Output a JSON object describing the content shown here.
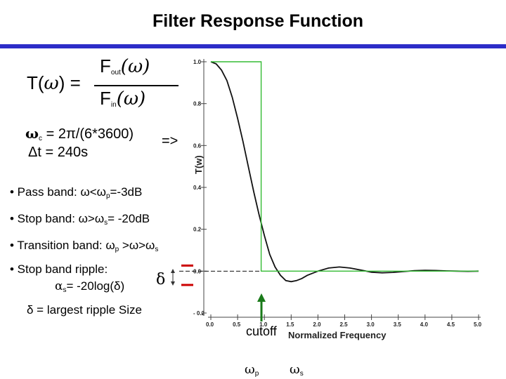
{
  "slide": {
    "title": "Filter Response Function"
  },
  "formula": {
    "lhs": "T(",
    "omega": "ω",
    "rhs": ") =",
    "numerator": "F",
    "numerator_sub": "out",
    "denominator": "F",
    "denominator_sub": "in",
    "arg": "(ω)"
  },
  "cutoff_eq": {
    "line1_symbol": "ω",
    "line1_sub": "c",
    "line1_text": " = 2π/(6*3600)",
    "arrow": "=>",
    "line2": "Δt = 240s"
  },
  "bullets": [
    {
      "pre": "• Pass band: ω<ω",
      "sub": "p",
      "post": "=-3dB"
    },
    {
      "pre": "• Stop band: ω>ω",
      "sub": "s",
      "post": "= -20dB"
    },
    {
      "pre": "• Transition band: ω",
      "sub": "p",
      "post": " >ω>ω",
      "sub2": "s"
    },
    {
      "pre": "• Stop band ripple:",
      "sub": "",
      "post": ""
    }
  ],
  "ripple": {
    "alpha": "α",
    "alpha_sub": "s",
    "text": "= -20log(δ)",
    "delta_symbol": "δ",
    "definition": "δ = largest ripple Size"
  },
  "markers": {
    "cutoff": "cutoff",
    "omega_p": "ω",
    "omega_p_sub": "p",
    "omega_s": "ω",
    "omega_s_sub": "s"
  },
  "chart_data": {
    "type": "line",
    "xlabel": "Normalized Frequency",
    "ylabel": "T(w)",
    "xlim": [
      0.0,
      5.0
    ],
    "ylim": [
      -0.2,
      1.0
    ],
    "xticks": [
      "0.0",
      "0.5",
      "1.0",
      "1.5",
      "2.0",
      "2.5",
      "3.0",
      "3.5",
      "4.0",
      "4.5",
      "5.0"
    ],
    "yticks": [
      "1.0",
      "0.8",
      "0.6",
      "0.4",
      "0.2",
      "0.0",
      "- 0.2"
    ],
    "series": [
      {
        "color": "#111111",
        "x": [
          0.0,
          0.1,
          0.2,
          0.3,
          0.4,
          0.5,
          0.6,
          0.7,
          0.8,
          0.9,
          1.0,
          1.1,
          1.2,
          1.3,
          1.4,
          1.5,
          1.6,
          1.7,
          1.8,
          1.9,
          2.0,
          2.2,
          2.4,
          2.6,
          2.8,
          3.0,
          3.2,
          3.4,
          3.6,
          3.8,
          4.0,
          4.2,
          4.4,
          4.6,
          4.8,
          5.0
        ],
        "y": [
          1.0,
          0.99,
          0.96,
          0.91,
          0.83,
          0.73,
          0.62,
          0.5,
          0.38,
          0.27,
          0.17,
          0.08,
          0.02,
          -0.02,
          -0.045,
          -0.05,
          -0.045,
          -0.035,
          -0.02,
          -0.01,
          0.0,
          0.015,
          0.02,
          0.015,
          0.005,
          -0.005,
          -0.008,
          -0.006,
          -0.002,
          0.002,
          0.004,
          0.003,
          0.001,
          0.0,
          -0.001,
          0.0
        ]
      },
      {
        "color": "#33bb33",
        "x": [
          0.0,
          0.94,
          0.94,
          5.0
        ],
        "y": [
          1.0,
          1.0,
          0.0,
          0.0
        ]
      }
    ],
    "grid": false
  },
  "colors": {
    "title_rule": "#2c2cc8",
    "ideal_filter": "#33bb33",
    "marker_arrow": "#1a7a1a",
    "delta_bracket": "#cc0000"
  }
}
